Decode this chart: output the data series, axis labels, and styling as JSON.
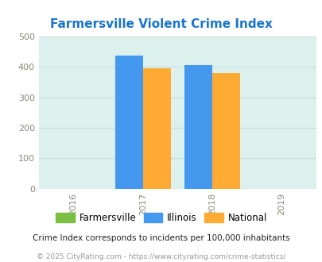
{
  "title": "Farmersville Violent Crime Index",
  "title_color": "#1874CD",
  "years": [
    2016,
    2017,
    2018,
    2019
  ],
  "bar_positions": [
    2017,
    2018
  ],
  "farmersville": [
    0,
    0
  ],
  "illinois": [
    438,
    406
  ],
  "national": [
    395,
    381
  ],
  "farmersville_color": "#7BC043",
  "illinois_color": "#4499EE",
  "national_color": "#FFAA33",
  "xlim": [
    2015.5,
    2019.5
  ],
  "ylim": [
    0,
    500
  ],
  "yticks": [
    0,
    100,
    200,
    300,
    400,
    500
  ],
  "xticks": [
    2016,
    2017,
    2018,
    2019
  ],
  "plot_bg_color": "#DCF0EE",
  "fig_bg_color": "#FFFFFF",
  "grid_color": "#CCDDDD",
  "legend_labels": [
    "Farmersville",
    "Illinois",
    "National"
  ],
  "footnote1": "Crime Index corresponds to incidents per 100,000 inhabitants",
  "footnote2": "© 2025 CityRating.com - https://www.cityrating.com/crime-statistics/",
  "bar_width": 0.4
}
